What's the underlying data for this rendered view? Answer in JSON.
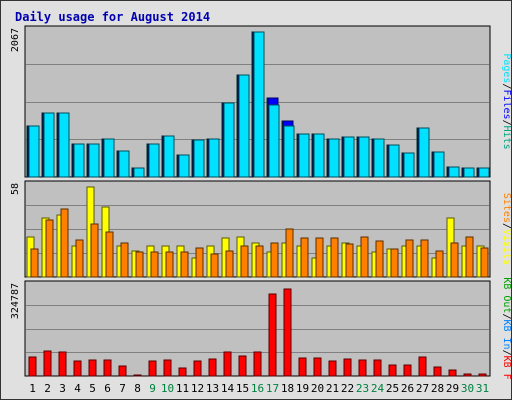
{
  "chart_data": {
    "type": "bar",
    "title": "Daily usage for August 2014",
    "x": [
      "1",
      "2",
      "3",
      "4",
      "5",
      "6",
      "7",
      "8",
      "9",
      "10",
      "11",
      "12",
      "13",
      "14",
      "15",
      "16",
      "17",
      "18",
      "19",
      "20",
      "21",
      "22",
      "23",
      "24",
      "25",
      "26",
      "27",
      "28",
      "29",
      "30",
      "31"
    ],
    "weekend_days": [
      "9",
      "10",
      "16",
      "17",
      "23",
      "24",
      "30",
      "31"
    ],
    "panels": [
      {
        "label_max": "2067",
        "ymax": 2067,
        "series": [
          {
            "name": "Hits",
            "color": "#00a080",
            "values": [
              720,
              915,
              915,
              465,
              465,
              545,
              375,
              135,
              465,
              580,
              310,
              525,
              535,
              1050,
              1450,
              2067,
              1130,
              800,
              615,
              615,
              540,
              575,
              575,
              540,
              455,
              345,
              700,
              355,
              145,
              130,
              130
            ]
          },
          {
            "name": "Files",
            "color": "#0000ff",
            "values": [
              720,
              915,
              915,
              465,
              465,
              545,
              375,
              135,
              465,
              580,
              310,
              525,
              535,
              1050,
              1450,
              2067,
              1130,
              800,
              615,
              615,
              540,
              575,
              575,
              540,
              455,
              345,
              700,
              355,
              145,
              130,
              130
            ]
          },
          {
            "name": "Pages",
            "color": "#00e0ff",
            "values": [
              720,
              915,
              915,
              465,
              465,
              545,
              375,
              135,
              465,
              580,
              310,
              525,
              535,
              1050,
              1450,
              2067,
              1030,
              730,
              615,
              615,
              540,
              575,
              575,
              540,
              455,
              345,
              700,
              355,
              145,
              130,
              130
            ]
          }
        ]
      },
      {
        "label_max": "58",
        "ymax": 58,
        "series": [
          {
            "name": "Visits",
            "color": "#ffff00",
            "values": [
              26,
              38,
              40,
              20,
              58,
              45,
              20,
              17,
              20,
              20,
              20,
              12,
              20,
              25,
              26,
              22,
              16,
              22,
              20,
              12,
              20,
              22,
              20,
              16,
              18,
              20,
              20,
              12,
              38,
              20,
              20
            ]
          },
          {
            "name": "Sites",
            "color": "#ff8000",
            "values": [
              18,
              37,
              44,
              24,
              34,
              29,
              22,
              16,
              16,
              16,
              16,
              19,
              15,
              17,
              20,
              20,
              22,
              31,
              25,
              25,
              25,
              21,
              26,
              23,
              18,
              24,
              24,
              17,
              22,
              26,
              19
            ]
          }
        ]
      },
      {
        "label_max": "324787",
        "ymax": 324787,
        "series": [
          {
            "name": "KB F",
            "color": "#ff0000",
            "values": [
              71000,
              91000,
              87000,
              54000,
              59000,
              58000,
              38000,
              5000,
              54000,
              58000,
              30000,
              54000,
              63000,
              89000,
              73000,
              89000,
              301000,
              317000,
              66000,
              64000,
              53000,
              61000,
              58000,
              57000,
              39000,
              39000,
              70000,
              33000,
              23000,
              6000,
              9000
            ]
          },
          {
            "name": "KB In",
            "color": "#0080ff",
            "values": []
          },
          {
            "name": "KB Out",
            "color": "#00a000",
            "values": []
          }
        ]
      }
    ],
    "sep": "/"
  }
}
